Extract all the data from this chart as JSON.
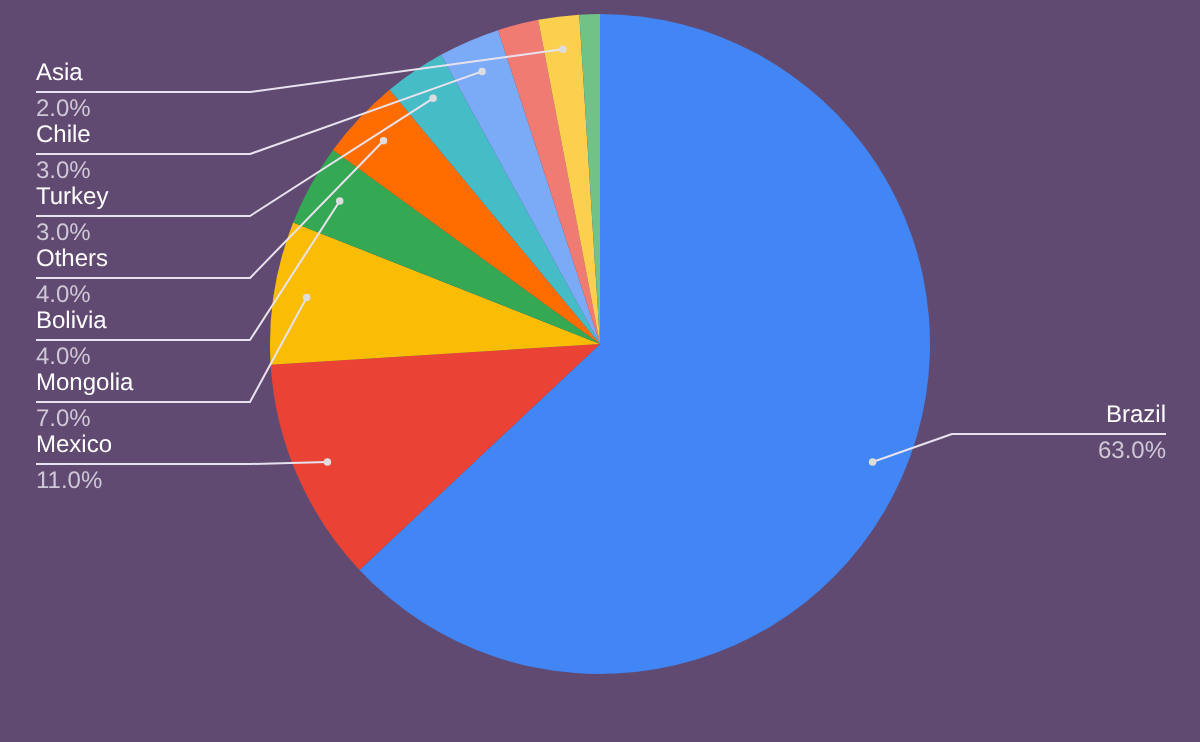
{
  "chart_data": {
    "type": "pie",
    "categories": [
      "Brazil",
      "Mexico",
      "Mongolia",
      "Bolivia",
      "Others",
      "Turkey",
      "Chile",
      null,
      "Asia",
      null
    ],
    "values": [
      63,
      11,
      7,
      4,
      4,
      3,
      3,
      2,
      2,
      1
    ],
    "value_labels": [
      "63.0%",
      "11.0%",
      "7.0%",
      "4.0%",
      "4.0%",
      "3.0%",
      "3.0%",
      null,
      "2.0%",
      null
    ],
    "colors": [
      "#4285f4",
      "#ea4335",
      "#fbbc04",
      "#34a853",
      "#ff6d01",
      "#46bdc6",
      "#7baaf7",
      "#f07b72",
      "#fcd04f",
      "#71c287"
    ]
  }
}
